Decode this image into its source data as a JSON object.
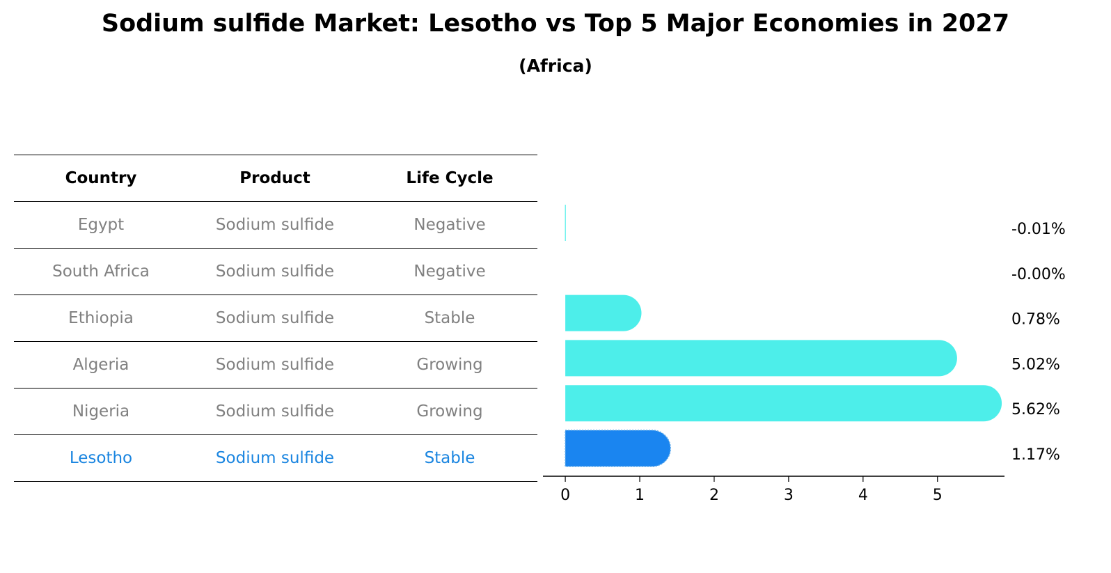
{
  "title": "Sodium sulfide Market: Lesotho vs Top 5 Major Economies in 2027",
  "subtitle": "(Africa)",
  "table": {
    "headers": [
      "Country",
      "Product",
      "Life Cycle"
    ],
    "rows": [
      {
        "country": "Egypt",
        "product": "Sodium sulfide",
        "life_cycle": "Negative"
      },
      {
        "country": "South Africa",
        "product": "Sodium sulfide",
        "life_cycle": "Negative"
      },
      {
        "country": "Ethiopia",
        "product": "Sodium sulfide",
        "life_cycle": "Stable"
      },
      {
        "country": "Algeria",
        "product": "Sodium sulfide",
        "life_cycle": "Growing"
      },
      {
        "country": "Nigeria",
        "product": "Sodium sulfide",
        "life_cycle": "Growing"
      },
      {
        "country": "Lesotho",
        "product": "Sodium sulfide",
        "life_cycle": "Stable"
      }
    ]
  },
  "colors": {
    "bar": "#4deeea",
    "highlight": "#1a85f0",
    "highlight_text": "#1a85e0",
    "muted_text": "#808080"
  },
  "chart_data": {
    "type": "bar",
    "orientation": "horizontal",
    "categories": [
      "Egypt",
      "South Africa",
      "Ethiopia",
      "Algeria",
      "Nigeria",
      "Lesotho"
    ],
    "values": [
      -0.01,
      -0.0,
      0.78,
      5.02,
      5.62,
      1.17
    ],
    "data_labels": [
      "-0.01%",
      "-0.00%",
      "0.78%",
      "5.02%",
      "5.62%",
      "1.17%"
    ],
    "highlight": "Lesotho",
    "xlim": [
      -0.3,
      5.9
    ],
    "xticks": [
      0,
      1,
      2,
      3,
      4,
      5
    ]
  }
}
